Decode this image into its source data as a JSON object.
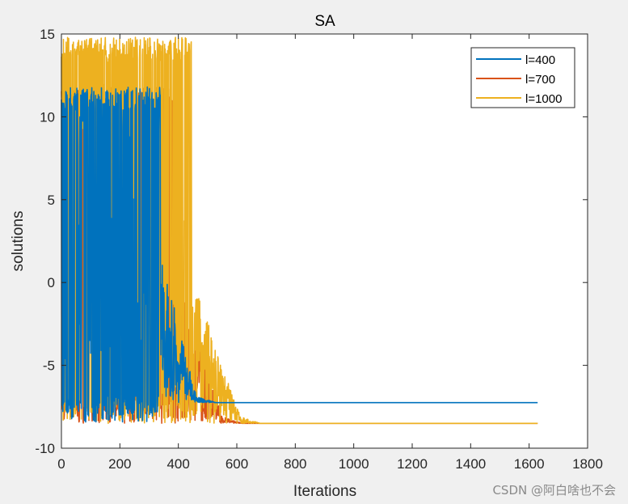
{
  "chart_data": {
    "type": "line",
    "title": "SA",
    "xlabel": "Iterations",
    "ylabel": "solutions",
    "xlim": [
      0,
      1800
    ],
    "ylim": [
      -10,
      15
    ],
    "xticks": [
      0,
      200,
      400,
      600,
      800,
      1000,
      1200,
      1400,
      1600,
      1800
    ],
    "yticks": [
      -10,
      -5,
      0,
      5,
      10,
      15
    ],
    "grid": false,
    "legend_position": "top-right",
    "series": [
      {
        "name": "l=400",
        "color": "#0072BD",
        "n_points": 1630,
        "settle_iteration": 470,
        "converged_value": -7.25,
        "min": -8.45,
        "max": 11.8
      },
      {
        "name": "l=700",
        "color": "#D95319",
        "n_points": 1630,
        "settle_iteration": 560,
        "converged_value": -8.5,
        "min": -8.5,
        "max": 11.8
      },
      {
        "name": "l=1000",
        "color": "#EDB120",
        "n_points": 1630,
        "settle_iteration": 620,
        "converged_value": -8.5,
        "min": -8.5,
        "max": 14.8
      }
    ]
  },
  "watermark": "CSDN @阿白啥也不会"
}
